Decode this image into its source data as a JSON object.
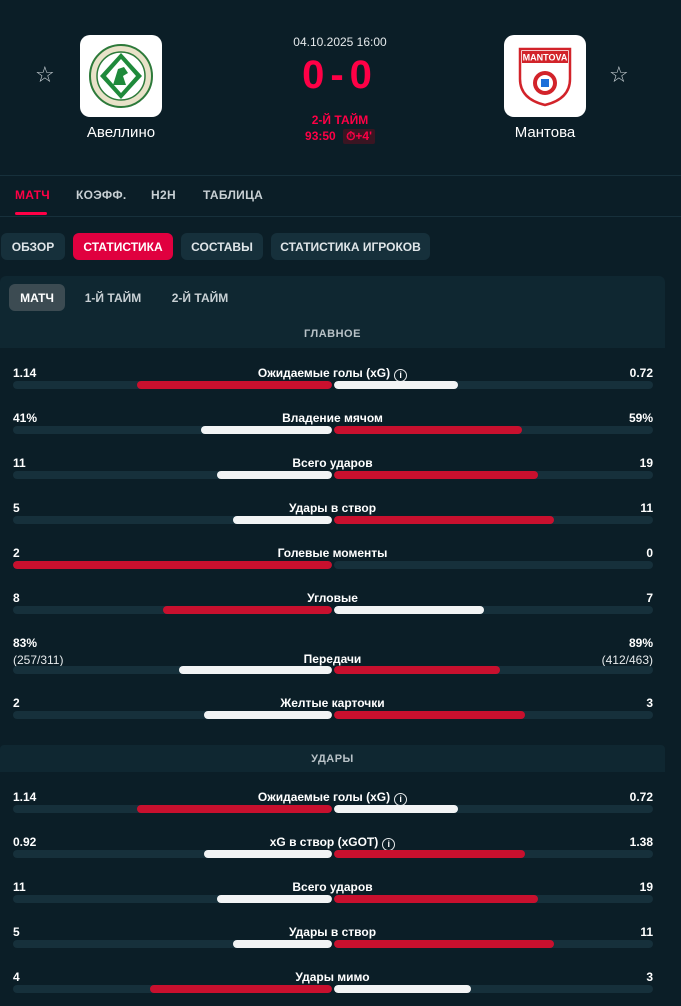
{
  "header": {
    "date": "04.10.2025 16:00",
    "score": "0-0",
    "period": "2-Й ТАЙМ",
    "clock": "93:50",
    "added_time": "⏱+4'",
    "home_team": "Авеллино",
    "away_team": "Мантова",
    "home_logo_text": "AVELLINO",
    "away_logo_text": "MANTOVA"
  },
  "tabs": [
    {
      "label": "МАТЧ",
      "active": true
    },
    {
      "label": "КОЭФФ.",
      "active": false
    },
    {
      "label": "H2H",
      "active": false
    },
    {
      "label": "ТАБЛИЦА",
      "active": false
    }
  ],
  "subtabs": [
    {
      "label": "ОБЗОР",
      "active": false
    },
    {
      "label": "СТАТИСТИКА",
      "active": true
    },
    {
      "label": "СОСТАВЫ",
      "active": false
    },
    {
      "label": "СТАТИСТИКА ИГРОКОВ",
      "active": false
    }
  ],
  "periods": [
    {
      "label": "МАТЧ",
      "active": true
    },
    {
      "label": "1-Й ТАЙМ",
      "active": false
    },
    {
      "label": "2-Й ТАЙМ",
      "active": false
    }
  ],
  "sections": [
    {
      "title": "ГЛАВНОЕ",
      "rows": [
        {
          "label": "Ожидаемые голы (xG)",
          "info": true,
          "home": "1.14",
          "away": "0.72",
          "home_share": 0.61,
          "away_share": 0.39,
          "leader": "home"
        },
        {
          "label": "Владение мячом",
          "info": false,
          "home": "41%",
          "away": "59%",
          "home_share": 0.41,
          "away_share": 0.59,
          "leader": "away"
        },
        {
          "label": "Всего ударов",
          "info": false,
          "home": "11",
          "away": "19",
          "home_share": 0.36,
          "away_share": 0.64,
          "leader": "away"
        },
        {
          "label": "Удары в створ",
          "info": false,
          "home": "5",
          "away": "11",
          "home_share": 0.31,
          "away_share": 0.69,
          "leader": "away"
        },
        {
          "label": "Голевые моменты",
          "info": false,
          "home": "2",
          "away": "0",
          "home_share": 1.0,
          "away_share": 0.0,
          "leader": "home"
        },
        {
          "label": "Угловые",
          "info": false,
          "home": "8",
          "away": "7",
          "home_share": 0.53,
          "away_share": 0.47,
          "leader": "home"
        },
        {
          "label": "Передачи",
          "info": false,
          "home": "83%",
          "home_sub": "(257/311)",
          "away": "89%",
          "away_sub": "(412/463)",
          "home_share": 0.48,
          "away_share": 0.52,
          "leader": "away"
        },
        {
          "label": "Желтые карточки",
          "info": false,
          "home": "2",
          "away": "3",
          "home_share": 0.4,
          "away_share": 0.6,
          "leader": "away"
        }
      ]
    },
    {
      "title": "УДАРЫ",
      "rows": [
        {
          "label": "Ожидаемые голы (xG)",
          "info": true,
          "home": "1.14",
          "away": "0.72",
          "home_share": 0.61,
          "away_share": 0.39,
          "leader": "home"
        },
        {
          "label": "xG в створ (xGOT)",
          "info": true,
          "home": "0.92",
          "away": "1.38",
          "home_share": 0.4,
          "away_share": 0.6,
          "leader": "away"
        },
        {
          "label": "Всего ударов",
          "info": false,
          "home": "11",
          "away": "19",
          "home_share": 0.36,
          "away_share": 0.64,
          "leader": "away"
        },
        {
          "label": "Удары в створ",
          "info": false,
          "home": "5",
          "away": "11",
          "home_share": 0.31,
          "away_share": 0.69,
          "leader": "away"
        },
        {
          "label": "Удары мимо",
          "info": false,
          "home": "4",
          "away": "3",
          "home_share": 0.57,
          "away_share": 0.43,
          "leader": "home"
        }
      ]
    }
  ],
  "colors": {
    "accent": "#ff0046",
    "bar_leader": "#c8102e",
    "bar_other": "#f2f4f5",
    "background": "#0b1e27"
  }
}
